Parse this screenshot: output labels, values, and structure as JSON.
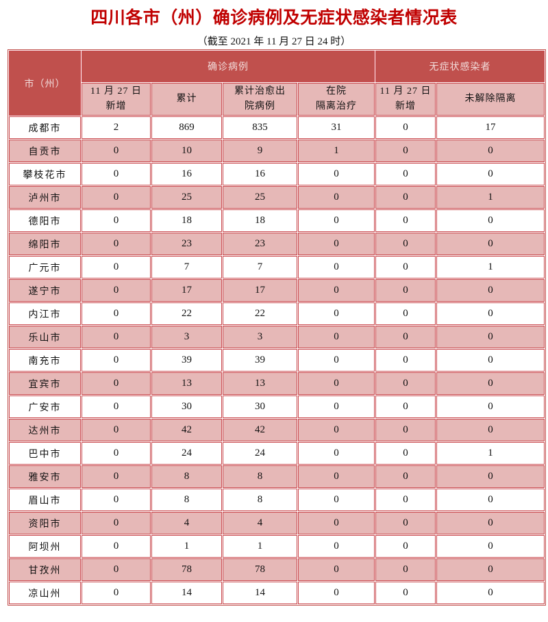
{
  "title": "四川各市（州）确诊病例及无症状感染者情况表",
  "subtitle": "（截至 2021 年 11 月 27 日 24 时）",
  "colors": {
    "header": "#c0504d",
    "pink": "#e6b8b7",
    "title": "#c00000"
  },
  "table": {
    "city_header": "市（州）",
    "group_confirmed": "确诊病例",
    "group_asymptomatic": "无症状感染者",
    "columns": [
      {
        "line1": "11 月 27 日",
        "line2": "新增"
      },
      {
        "line1": "累计",
        "line2": ""
      },
      {
        "line1": "累计治愈出",
        "line2": "院病例"
      },
      {
        "line1": "在院",
        "line2": "隔离治疗"
      },
      {
        "line1": "11 月 27 日",
        "line2": "新增"
      },
      {
        "line1": "未解除隔离",
        "line2": ""
      }
    ],
    "rows": [
      [
        "成都市",
        "2",
        "869",
        "835",
        "31",
        "0",
        "17"
      ],
      [
        "自贡市",
        "0",
        "10",
        "9",
        "1",
        "0",
        "0"
      ],
      [
        "攀枝花市",
        "0",
        "16",
        "16",
        "0",
        "0",
        "0"
      ],
      [
        "泸州市",
        "0",
        "25",
        "25",
        "0",
        "0",
        "1"
      ],
      [
        "德阳市",
        "0",
        "18",
        "18",
        "0",
        "0",
        "0"
      ],
      [
        "绵阳市",
        "0",
        "23",
        "23",
        "0",
        "0",
        "0"
      ],
      [
        "广元市",
        "0",
        "7",
        "7",
        "0",
        "0",
        "1"
      ],
      [
        "遂宁市",
        "0",
        "17",
        "17",
        "0",
        "0",
        "0"
      ],
      [
        "内江市",
        "0",
        "22",
        "22",
        "0",
        "0",
        "0"
      ],
      [
        "乐山市",
        "0",
        "3",
        "3",
        "0",
        "0",
        "0"
      ],
      [
        "南充市",
        "0",
        "39",
        "39",
        "0",
        "0",
        "0"
      ],
      [
        "宜宾市",
        "0",
        "13",
        "13",
        "0",
        "0",
        "0"
      ],
      [
        "广安市",
        "0",
        "30",
        "30",
        "0",
        "0",
        "0"
      ],
      [
        "达州市",
        "0",
        "42",
        "42",
        "0",
        "0",
        "0"
      ],
      [
        "巴中市",
        "0",
        "24",
        "24",
        "0",
        "0",
        "1"
      ],
      [
        "雅安市",
        "0",
        "8",
        "8",
        "0",
        "0",
        "0"
      ],
      [
        "眉山市",
        "0",
        "8",
        "8",
        "0",
        "0",
        "0"
      ],
      [
        "资阳市",
        "0",
        "4",
        "4",
        "0",
        "0",
        "0"
      ],
      [
        "阿坝州",
        "0",
        "1",
        "1",
        "0",
        "0",
        "0"
      ],
      [
        "甘孜州",
        "0",
        "78",
        "78",
        "0",
        "0",
        "0"
      ],
      [
        "凉山州",
        "0",
        "14",
        "14",
        "0",
        "0",
        "0"
      ]
    ]
  }
}
